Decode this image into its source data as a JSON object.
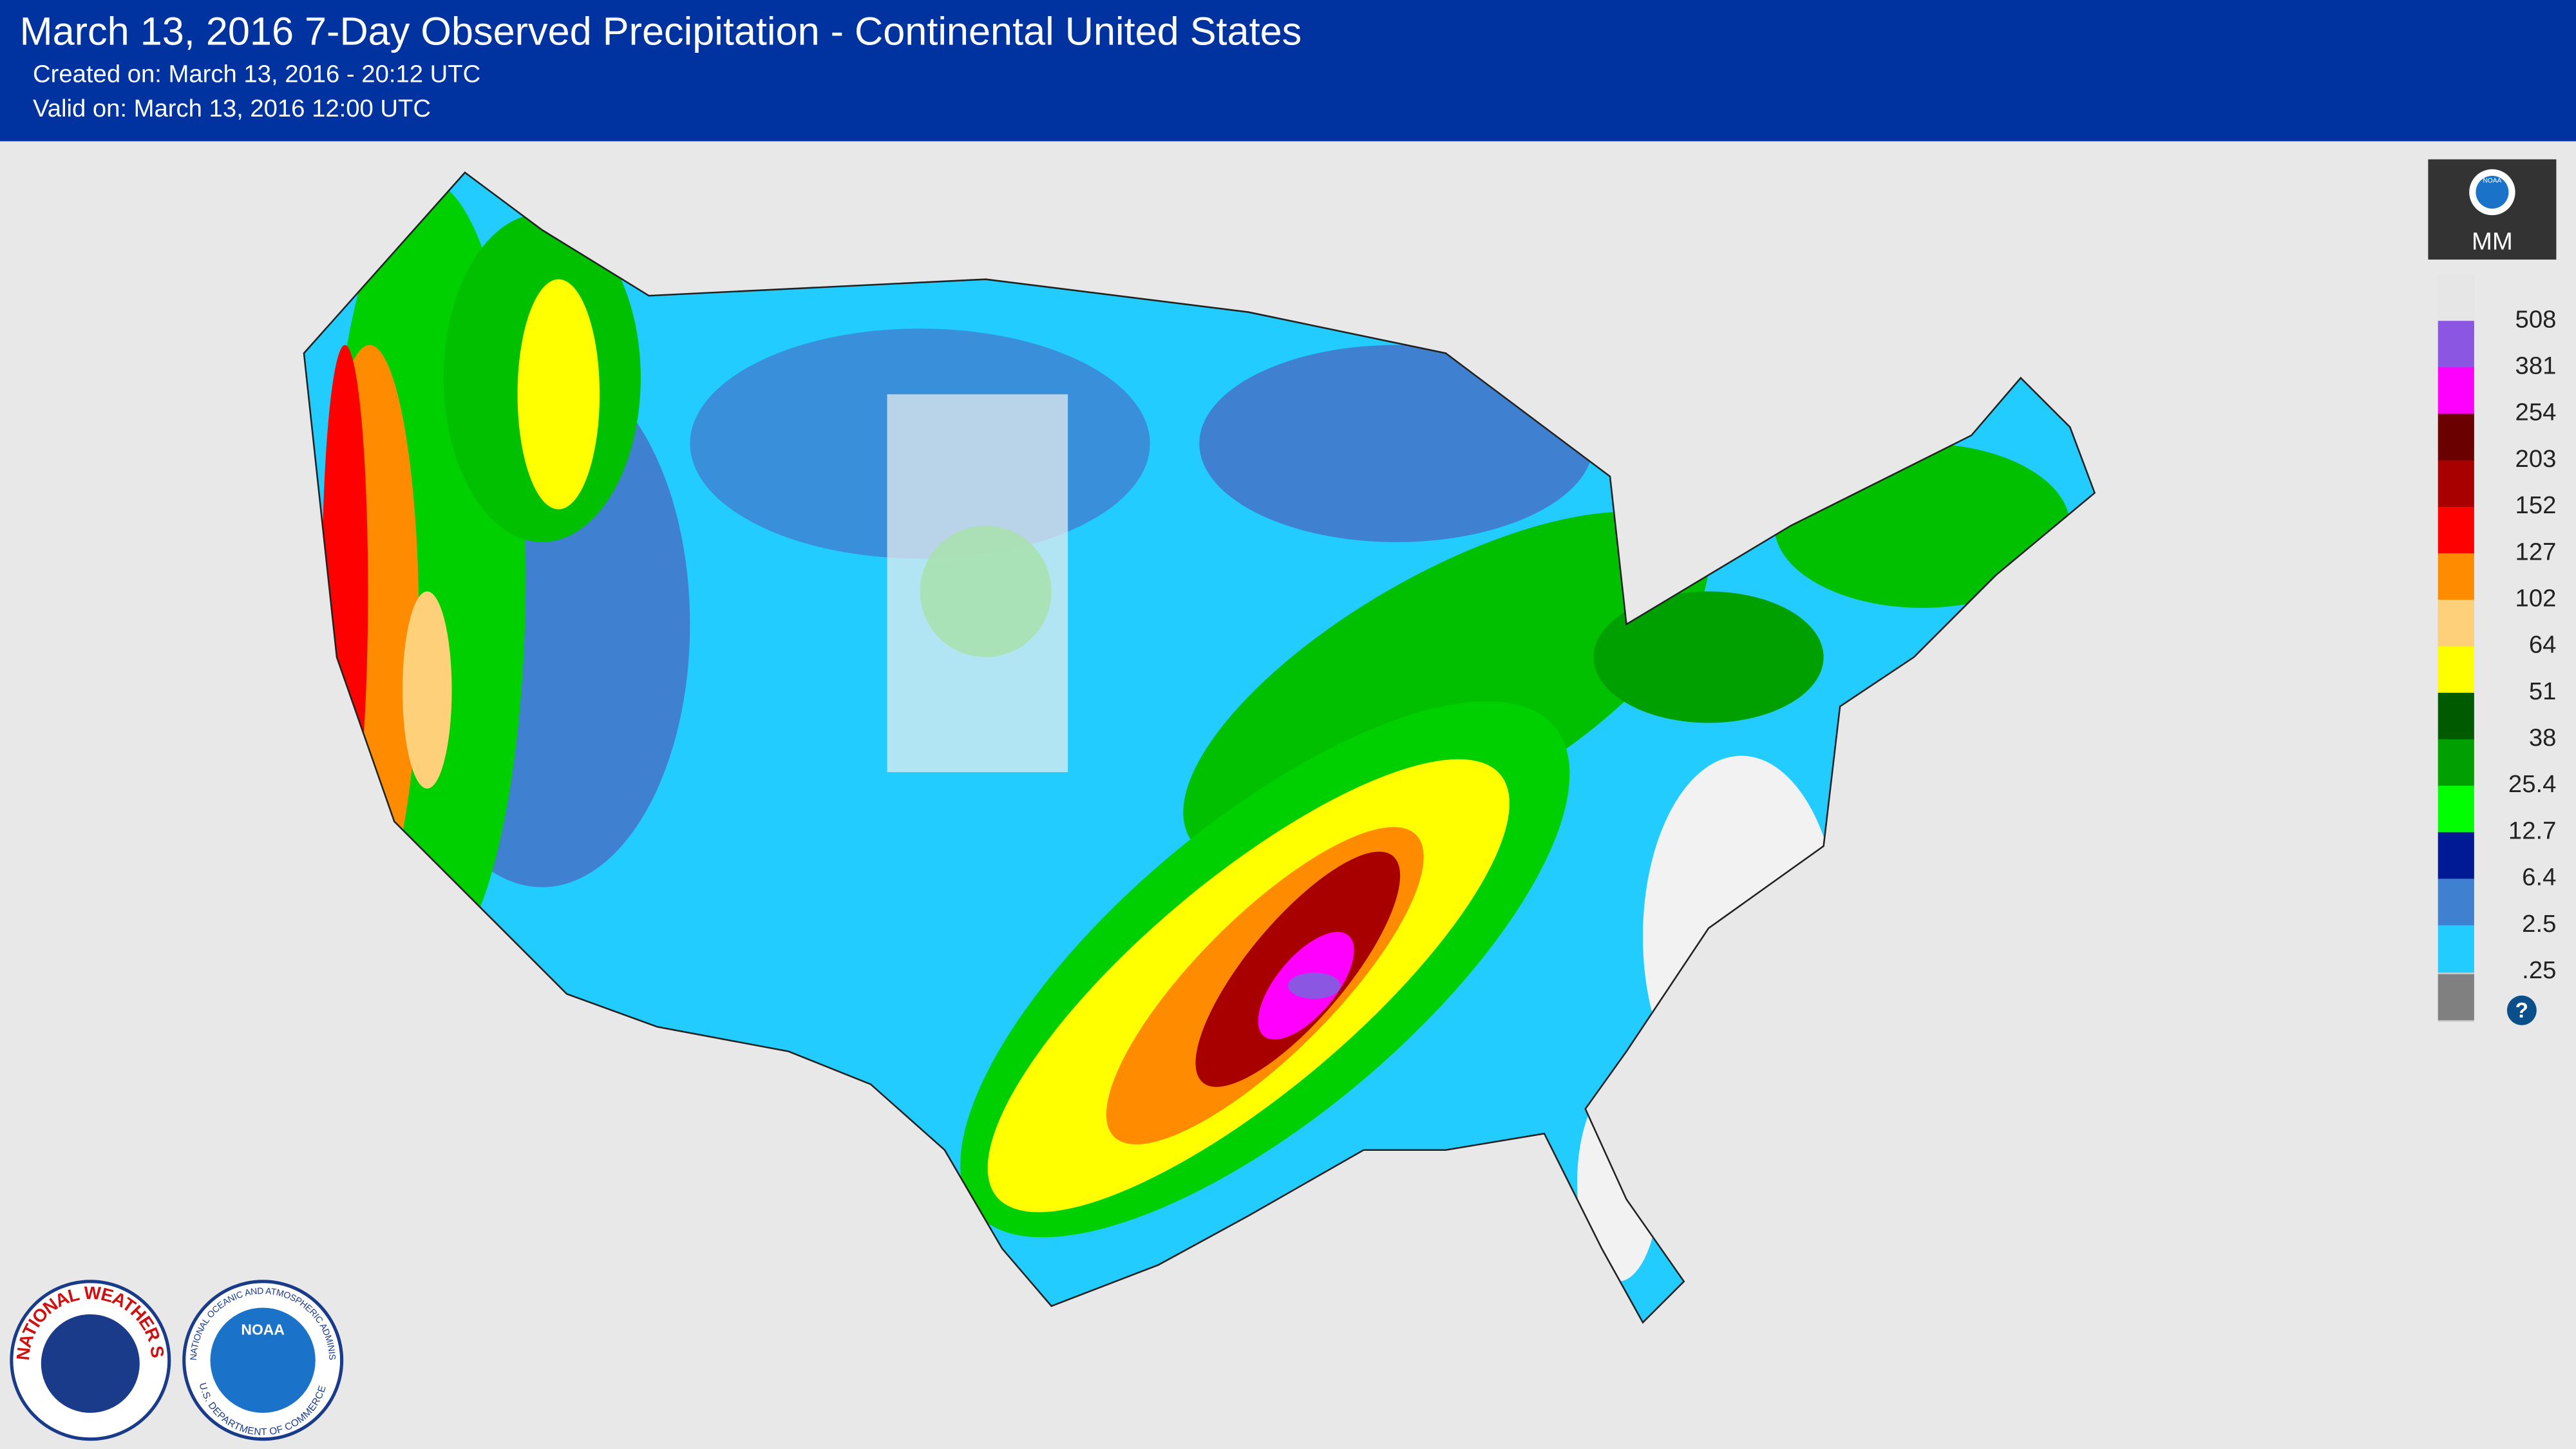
{
  "header": {
    "title": "March 13, 2016 7-Day Observed Precipitation - Continental United States",
    "created": "Created on: March 13, 2016 - 20:12 UTC",
    "valid": "Valid on: March 13, 2016 12:00 UTC"
  },
  "legend": {
    "badge": "NOAA",
    "unit": "MM",
    "help": "?",
    "items": [
      {
        "label": "508",
        "color": "#e6e6e6"
      },
      {
        "label": "381",
        "color": "#8a56e2"
      },
      {
        "label": "254",
        "color": "#ff00ff"
      },
      {
        "label": "203",
        "color": "#6b0000"
      },
      {
        "label": "152",
        "color": "#a80000"
      },
      {
        "label": "127",
        "color": "#ff0000"
      },
      {
        "label": "102",
        "color": "#ff8c00"
      },
      {
        "label": "64",
        "color": "#ffd07a"
      },
      {
        "label": "51",
        "color": "#ffff00"
      },
      {
        "label": "38",
        "color": "#005a00"
      },
      {
        "label": "25.4",
        "color": "#00a000"
      },
      {
        "label": "12.7",
        "color": "#00ff00"
      },
      {
        "label": "6.4",
        "color": "#001a96"
      },
      {
        "label": "2.5",
        "color": "#4080d0"
      },
      {
        "label": ".25",
        "color": "#22ccff"
      }
    ]
  },
  "logos": {
    "nws": "NATIONAL WEATHER SERVICE",
    "noaa": "NOAA",
    "noaa_ring": "NATIONAL OCEANIC AND ATMOSPHERIC ADMINISTRATION",
    "doc_ring": "U.S. DEPARTMENT OF COMMERCE"
  }
}
